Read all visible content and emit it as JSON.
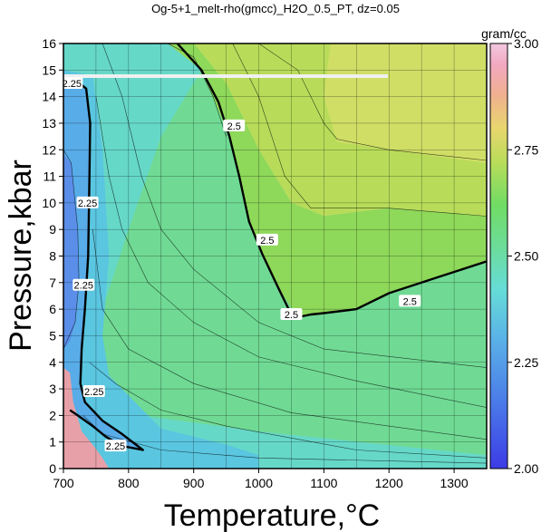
{
  "chart_data": {
    "type": "heatmap",
    "title": "Og-5+1_melt-rho(gmcc)_H2O_0.5_PT, dz=0.05",
    "xlabel": "Temperature,°C",
    "ylabel": "Pressure,kbar",
    "xlim": [
      700,
      1350
    ],
    "ylim": [
      0,
      16
    ],
    "x_ticks": [
      700,
      800,
      900,
      1000,
      1100,
      1200,
      1300
    ],
    "y_ticks": [
      0,
      1,
      2,
      3,
      4,
      5,
      6,
      7,
      8,
      9,
      10,
      11,
      12,
      13,
      14,
      15,
      16
    ],
    "grid": true,
    "colorbar": {
      "unit": "gram/cc",
      "range": [
        2.0,
        3.0
      ],
      "ticks": [
        "2.00",
        "2.25",
        "2.50",
        "2.75",
        "3.00"
      ],
      "placement": "right"
    },
    "contour_interval": 0.05,
    "labeled_contours": [
      {
        "level": "2.25",
        "points": [
          [
            703,
            14.5
          ],
          [
            720,
            14.6
          ],
          [
            735,
            14.3
          ],
          [
            741,
            13
          ],
          [
            740,
            11
          ],
          [
            738,
            8
          ],
          [
            733,
            6
          ],
          [
            728,
            4.5
          ],
          [
            726,
            3.2
          ],
          [
            733,
            2.5
          ],
          [
            760,
            1.8
          ],
          [
            790,
            1.3
          ],
          [
            822,
            0.7
          ],
          [
            790,
            0.85
          ],
          [
            765,
            1.2
          ],
          [
            745,
            1.6
          ],
          [
            722,
            2.0
          ],
          [
            710,
            2.2
          ]
        ],
        "labels": [
          [
            713,
            14.5
          ],
          [
            737,
            10.0
          ],
          [
            731,
            6.9
          ],
          [
            747,
            2.9
          ],
          [
            780,
            0.85
          ]
        ]
      },
      {
        "level": "2.5",
        "points": [
          [
            875,
            16
          ],
          [
            912,
            15
          ],
          [
            938,
            13.8
          ],
          [
            955,
            12.5
          ],
          [
            970,
            11
          ],
          [
            985,
            9.3
          ],
          [
            1005,
            8.1
          ],
          [
            1030,
            6.8
          ],
          [
            1048,
            5.9
          ],
          [
            1060,
            5.7
          ],
          [
            1080,
            5.8
          ],
          [
            1100,
            5.85
          ],
          [
            1150,
            6.0
          ],
          [
            1200,
            6.6
          ],
          [
            1275,
            7.2
          ],
          [
            1350,
            7.8
          ]
        ],
        "labels": [
          [
            962,
            12.9
          ],
          [
            1013,
            8.6
          ],
          [
            1050,
            5.8
          ],
          [
            1232,
            6.3
          ]
        ]
      }
    ],
    "approx_density_field": [
      {
        "T": 700,
        "P": 16,
        "rho": 2.3
      },
      {
        "T": 760,
        "P": 15,
        "rho": 2.33
      },
      {
        "T": 900,
        "P": 15,
        "rho": 2.42
      },
      {
        "T": 1100,
        "P": 15,
        "rho": 2.57
      },
      {
        "T": 1300,
        "P": 15,
        "rho": 2.61
      },
      {
        "T": 720,
        "P": 10,
        "rho": 2.21
      },
      {
        "T": 800,
        "P": 10,
        "rho": 2.31
      },
      {
        "T": 1000,
        "P": 10,
        "rho": 2.46
      },
      {
        "T": 1200,
        "P": 10,
        "rho": 2.56
      },
      {
        "T": 760,
        "P": 5,
        "rho": 2.28
      },
      {
        "T": 900,
        "P": 5,
        "rho": 2.38
      },
      {
        "T": 1100,
        "P": 5,
        "rho": 2.47
      },
      {
        "T": 1300,
        "P": 5,
        "rho": 2.5
      },
      {
        "T": 780,
        "P": 1,
        "rho": 2.28
      },
      {
        "T": 1000,
        "P": 1,
        "rho": 2.37
      },
      {
        "T": 1300,
        "P": 1,
        "rho": 2.44
      }
    ]
  },
  "colors": {
    "frame": "#000000",
    "grid": "#000000",
    "highlight_line": "#f0f0f0",
    "colorscale": [
      "#3c3ce6",
      "#4a78e8",
      "#5aa8e8",
      "#66d6e6",
      "#6ce0b8",
      "#70dc8c",
      "#6fda5a",
      "#9ddc57",
      "#d8de6a",
      "#f0c08a",
      "#f2a4b6",
      "#f2c0dc"
    ]
  }
}
